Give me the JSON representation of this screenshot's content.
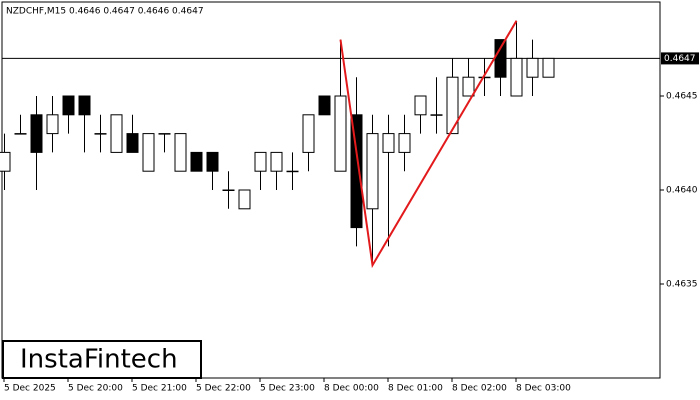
{
  "chart_data": {
    "type": "candlestick",
    "title": "NZDCHF,M15  0.4646 0.4647 0.4646 0.4647",
    "logo": "InstaFintech",
    "categories": [
      "5 Dec 2025",
      null,
      null,
      null,
      "5 Dec 20:00",
      null,
      null,
      null,
      "5 Dec 21:00",
      null,
      null,
      null,
      "5 Dec 22:00",
      null,
      null,
      null,
      "5 Dec 23:00",
      null,
      null,
      null,
      "8 Dec 00:00",
      null,
      null,
      null,
      "8 Dec 01:00",
      null,
      null,
      null,
      "8 Dec 02:00",
      null,
      null,
      null,
      "8 Dec 03:00",
      null,
      null
    ],
    "open": [
      0.4641,
      0.4643,
      0.4644,
      0.4643,
      0.4645,
      0.4645,
      0.4643,
      0.4642,
      0.4643,
      0.4641,
      0.4643,
      0.4641,
      0.4642,
      0.4642,
      0.464,
      0.4639,
      0.4641,
      0.4641,
      0.4641,
      0.4642,
      0.4645,
      0.4641,
      0.4644,
      0.4639,
      0.4642,
      0.4642,
      0.4644,
      0.4644,
      0.4643,
      0.4645,
      0.4646,
      0.4648,
      0.4645,
      0.4646,
      0.4646
    ],
    "high": [
      0.4643,
      0.4644,
      0.4645,
      0.4645,
      0.4645,
      0.4645,
      0.4644,
      0.4644,
      0.4644,
      0.4643,
      0.4643,
      0.4643,
      0.4642,
      0.4642,
      0.4641,
      0.464,
      0.4642,
      0.4642,
      0.4642,
      0.4644,
      0.4645,
      0.4648,
      0.4646,
      0.4644,
      0.4644,
      0.4644,
      0.4645,
      0.4646,
      0.4647,
      0.4647,
      0.4647,
      0.4648,
      0.4649,
      0.4648,
      0.4647
    ],
    "low": [
      0.464,
      0.4643,
      0.464,
      0.4642,
      0.4643,
      0.4642,
      0.4642,
      0.4642,
      0.4642,
      0.4641,
      0.4642,
      0.4641,
      0.4641,
      0.464,
      0.4639,
      0.4639,
      0.464,
      0.464,
      0.464,
      0.4641,
      0.4644,
      0.4641,
      0.4637,
      0.4636,
      0.4637,
      0.4641,
      0.4643,
      0.4643,
      0.4643,
      0.4645,
      0.4645,
      0.4645,
      0.4645,
      0.4645,
      0.4646
    ],
    "close": [
      0.4642,
      0.4643,
      0.4642,
      0.4644,
      0.4644,
      0.4644,
      0.4643,
      0.4644,
      0.4642,
      0.4643,
      0.4643,
      0.4643,
      0.4641,
      0.4641,
      0.464,
      0.464,
      0.4642,
      0.4642,
      0.4641,
      0.4644,
      0.4644,
      0.4645,
      0.4638,
      0.4643,
      0.4643,
      0.4643,
      0.4645,
      0.4644,
      0.4646,
      0.4646,
      0.4646,
      0.4646,
      0.4647,
      0.4647,
      0.4647
    ],
    "ylim": [
      0.463,
      0.465
    ],
    "yticks": [
      0.4635,
      {
        "value": 0.464,
        "label": "0.4640"
      },
      0.4645
    ],
    "current_price": 0.4647,
    "up_color": "#ffffff",
    "down_color": "#000000",
    "pattern": {
      "color": "#e31a1c",
      "index": [
        21,
        23,
        32
      ],
      "price": [
        0.4648,
        0.4636,
        0.4649
      ]
    }
  }
}
